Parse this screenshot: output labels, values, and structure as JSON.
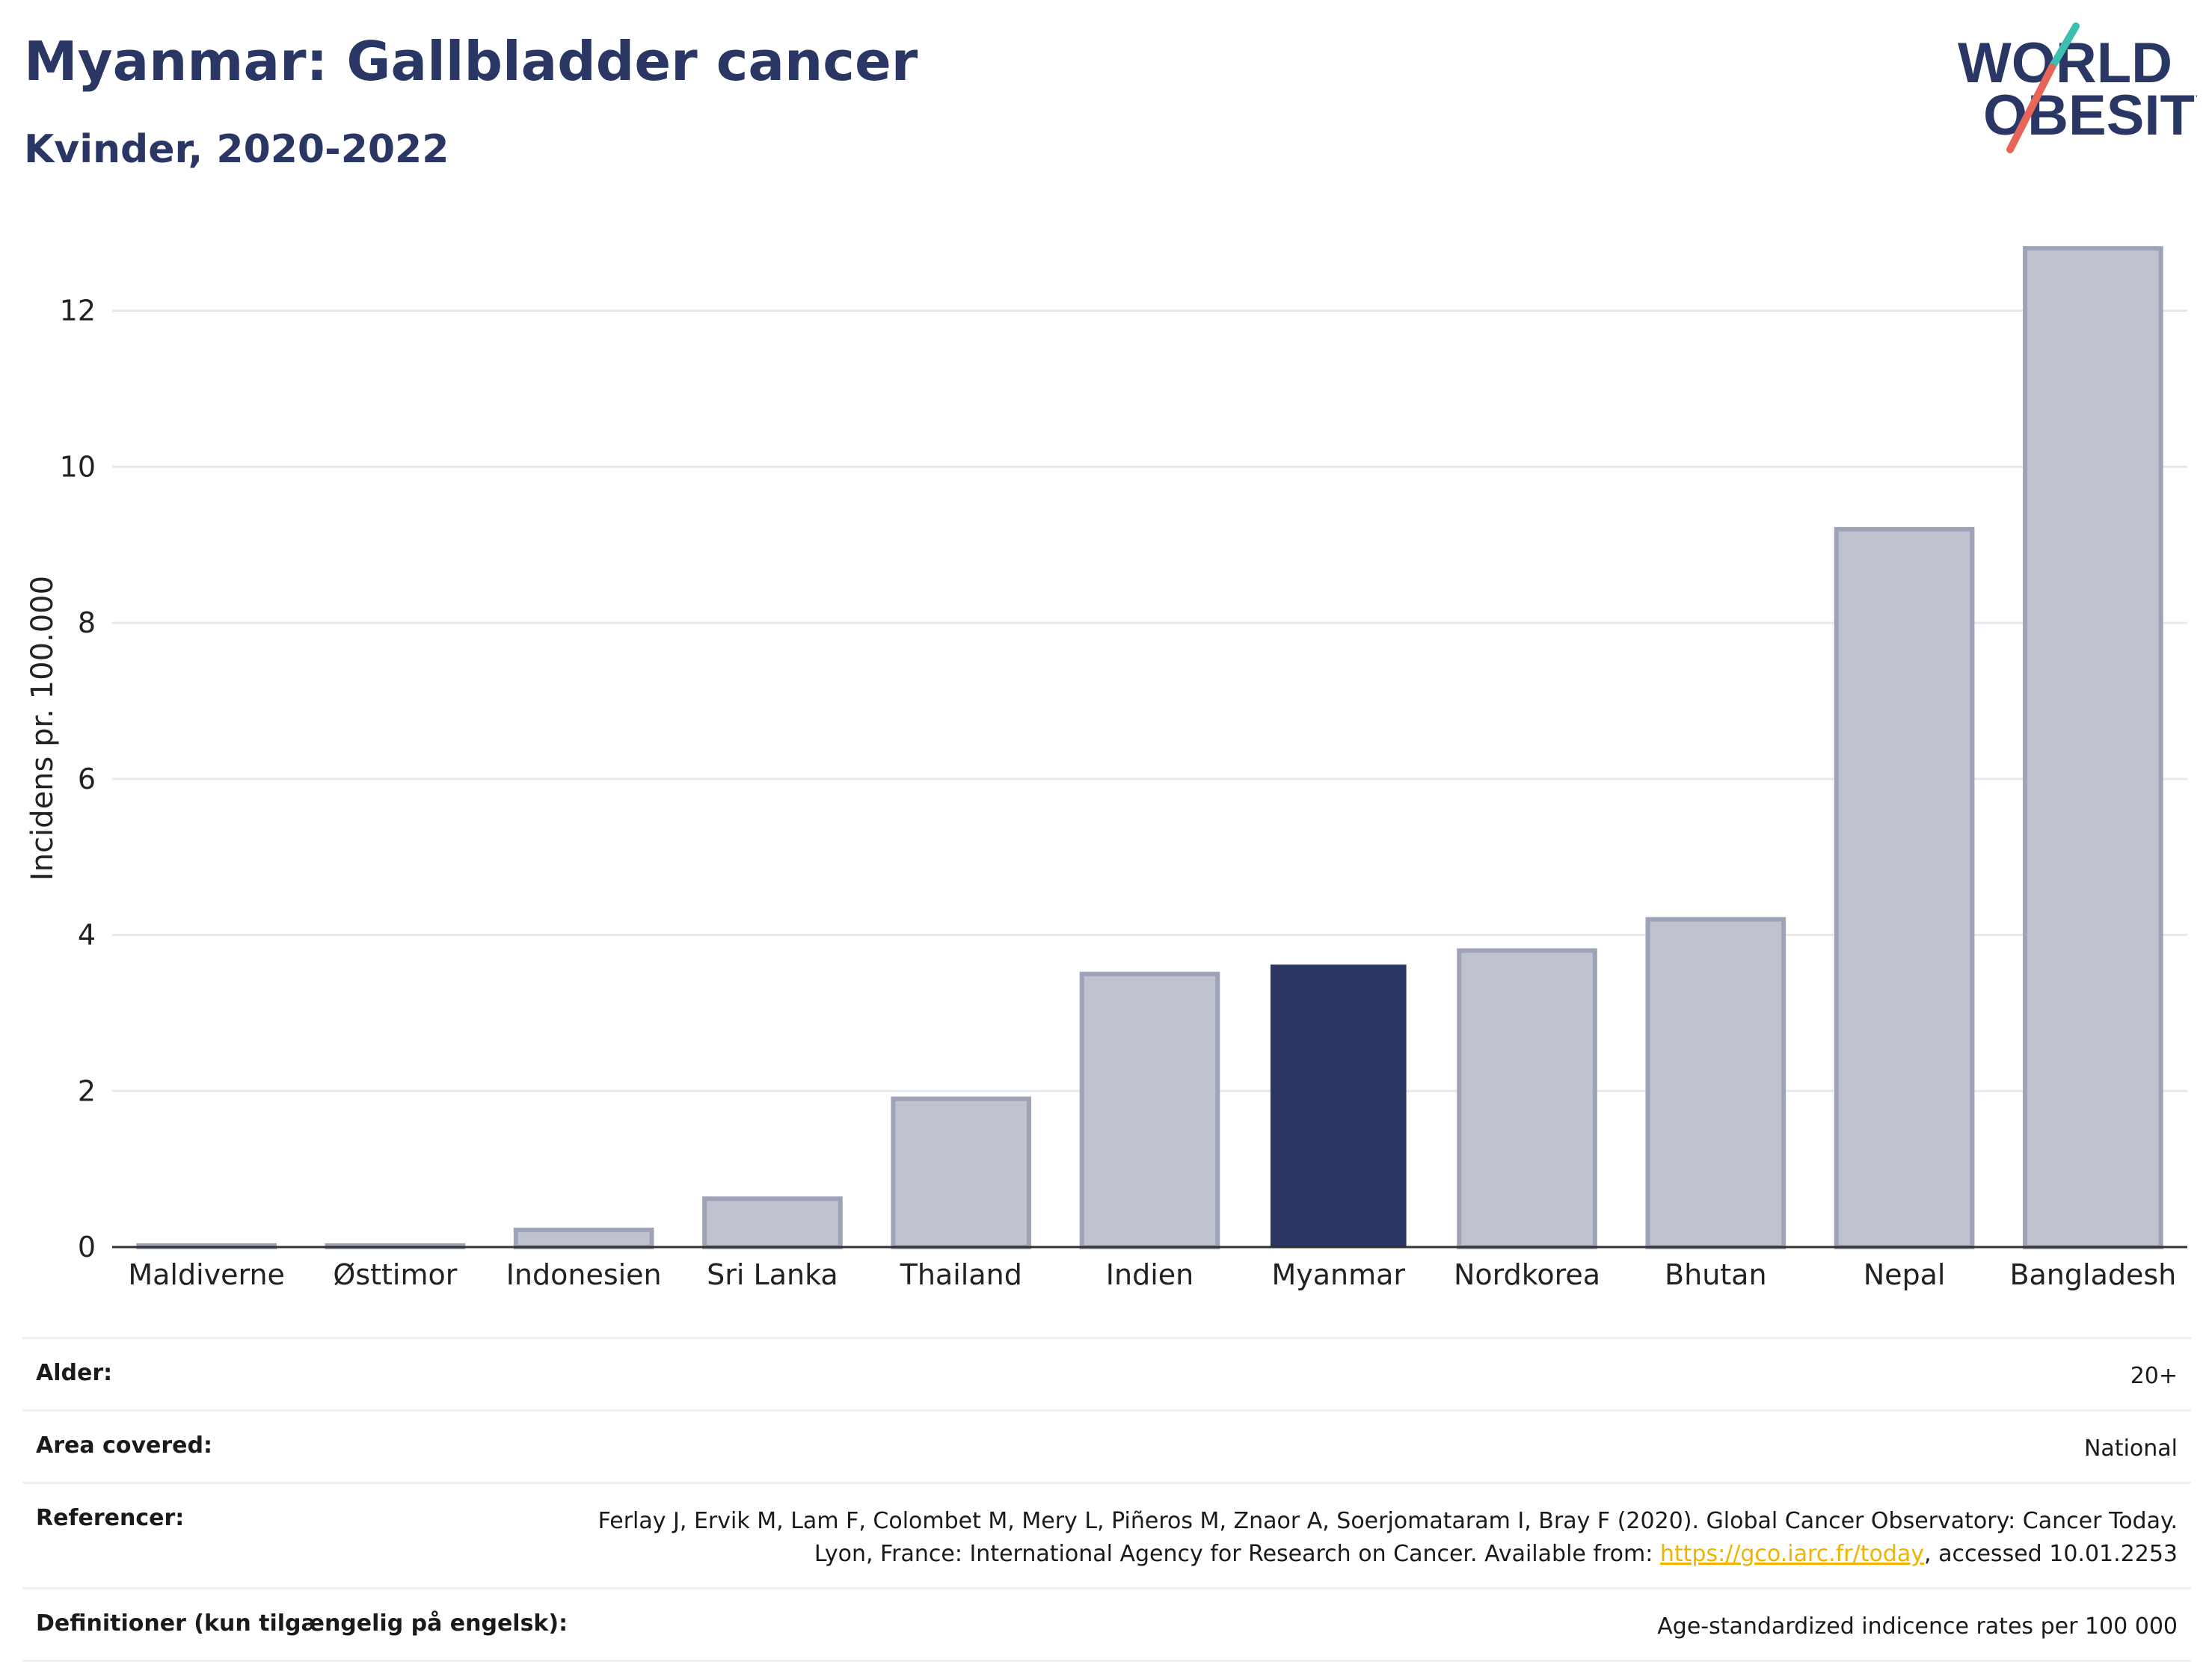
{
  "header": {
    "title": "Myanmar: Gallbladder cancer",
    "subtitle": "Kvinder, 2020-2022"
  },
  "logo": {
    "line1": "WORLD",
    "line2": "OBESITY",
    "accent_teal": "#3bbfb0",
    "accent_red": "#e8655a"
  },
  "colors": {
    "highlight": "#2a3663",
    "bar_fill": "#bfc2cf",
    "bar_stroke": "#9ea3b8",
    "axis": "#333333",
    "grid": "#e6e8ee"
  },
  "chart_data": {
    "type": "bar",
    "categories": [
      "Maldiverne",
      "Østtimor",
      "Indonesien",
      "Sri Lanka",
      "Thailand",
      "Indien",
      "Myanmar",
      "Nordkorea",
      "Bhutan",
      "Nepal",
      "Bangladesh"
    ],
    "values": [
      0.02,
      0.02,
      0.22,
      0.62,
      1.9,
      3.5,
      3.62,
      3.8,
      4.2,
      9.2,
      12.8
    ],
    "highlight": "Myanmar",
    "ylabel": "Incidens pr. 100.000",
    "xlabel": "",
    "ylim": [
      0,
      13.3
    ],
    "yticks": [
      0,
      2,
      4,
      6,
      8,
      10,
      12
    ],
    "grid": true
  },
  "footer": {
    "rows": [
      {
        "label": "Alder:",
        "value": "20+"
      },
      {
        "label": "Area covered:",
        "value": "National"
      },
      {
        "label": "Referencer:",
        "value_pre": "Ferlay J, Ervik M, Lam F, Colombet M, Mery L, Piñeros M, Znaor A, Soerjomataram I, Bray F (2020). Global Cancer Observatory: Cancer Today. Lyon, France: International Agency for Research on Cancer. Available from: ",
        "link": "https://gco.iarc.fr/today",
        "value_post": ", accessed 10.01.2253"
      },
      {
        "label": "Definitioner (kun tilgængelig på engelsk):",
        "value": "Age-standardized indicence rates per 100 000"
      }
    ]
  }
}
